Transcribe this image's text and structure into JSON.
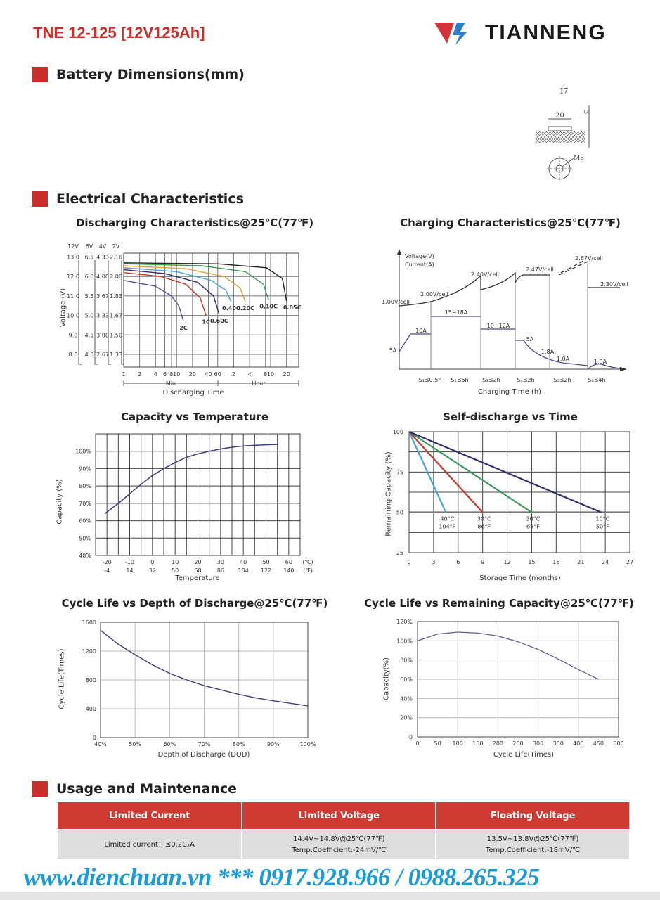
{
  "header": {
    "title": "TNE 12-125 [12V125Ah]",
    "brand": "TIANNENG"
  },
  "sections": {
    "dimensions": "Battery Dimensions(mm)",
    "electrical": "Electrical Characteristics",
    "usage": "Usage and Maintenance"
  },
  "terminal": {
    "name": "I7",
    "width": "20",
    "height": "3",
    "thread": "M8"
  },
  "colors": {
    "accent": "#c9302c",
    "footer": "#1a9ad9"
  },
  "chart_data": [
    {
      "type": "line",
      "title": "Discharging Characteristics@25℃(77℉)",
      "xlabel": "Discharging Time",
      "ylabel": "Voltage (V)",
      "x_scale": "log",
      "xunit_min": "Min",
      "xunit_hour": "Hour",
      "xticks": [
        {
          "v": 1,
          "l": "1"
        },
        {
          "v": 2,
          "l": "2"
        },
        {
          "v": 4,
          "l": "4"
        },
        {
          "v": 6,
          "l": "6"
        },
        {
          "v": 8,
          "l": "8"
        },
        {
          "v": 10,
          "l": "10"
        },
        {
          "v": 20,
          "l": "20"
        },
        {
          "v": 40,
          "l": "40"
        },
        {
          "v": 60,
          "l": "60"
        },
        {
          "v": 120,
          "l": "2"
        },
        {
          "v": 240,
          "l": "4"
        },
        {
          "v": 480,
          "l": "8"
        },
        {
          "v": 600,
          "l": "10"
        },
        {
          "v": 1200,
          "l": "20"
        }
      ],
      "ycolumns": [
        {
          "head": "12V",
          "labels": [
            "13.0",
            "12.0",
            "11.0",
            "10.0",
            "9.0",
            "8.0"
          ]
        },
        {
          "head": "6V",
          "labels": [
            "6.5",
            "6.0",
            "5.5",
            "5.0",
            "4.5",
            "4.0"
          ]
        },
        {
          "head": "4V",
          "labels": [
            "4.33",
            "4.00",
            "3.67",
            "3.33",
            "3.00",
            "2.67"
          ]
        },
        {
          "head": "2V",
          "labels": [
            "2.16",
            "2.00",
            "1.83",
            "1.67",
            "1.50",
            "1.33"
          ]
        }
      ],
      "yvalues": [
        13,
        12,
        11,
        10,
        9,
        8
      ],
      "ylim": [
        7.35,
        13.2
      ],
      "xlim": [
        1,
        2040
      ],
      "series": [
        {
          "name": "2C",
          "color": "#5b4d8c",
          "points": [
            [
              1,
              11.8
            ],
            [
              4,
              11.5
            ],
            [
              8,
              11.0
            ],
            [
              11,
              10.5
            ],
            [
              13.5,
              9.7
            ]
          ]
        },
        {
          "name": "1C",
          "color": "#c0392b",
          "points": [
            [
              1,
              12.2
            ],
            [
              5,
              12.0
            ],
            [
              15,
              11.6
            ],
            [
              28,
              10.9
            ],
            [
              36,
              10.0
            ]
          ]
        },
        {
          "name": "0.60C",
          "color": "#2e2e6e",
          "points": [
            [
              1,
              12.35
            ],
            [
              6,
              12.15
            ],
            [
              25,
              11.7
            ],
            [
              50,
              11.0
            ],
            [
              64,
              10.05
            ]
          ]
        },
        {
          "name": "0.40C",
          "color": "#4aa3d8",
          "points": [
            [
              1,
              12.45
            ],
            [
              10,
              12.25
            ],
            [
              45,
              11.8
            ],
            [
              85,
              11.3
            ],
            [
              108,
              10.7
            ]
          ]
        },
        {
          "name": "0.20C",
          "color": "#e0a040",
          "points": [
            [
              1,
              12.55
            ],
            [
              15,
              12.4
            ],
            [
              80,
              12.0
            ],
            [
              160,
              11.4
            ],
            [
              200,
              10.7
            ]
          ]
        },
        {
          "name": "0.10C",
          "color": "#3a9a5a",
          "points": [
            [
              1,
              12.65
            ],
            [
              30,
              12.55
            ],
            [
              200,
              12.25
            ],
            [
              440,
              11.6
            ],
            [
              550,
              10.8
            ]
          ]
        },
        {
          "name": "0.05C",
          "color": "#222222",
          "points": [
            [
              1,
              12.7
            ],
            [
              60,
              12.65
            ],
            [
              500,
              12.45
            ],
            [
              1000,
              11.9
            ],
            [
              1200,
              10.75
            ]
          ]
        }
      ]
    },
    {
      "type": "diagram",
      "title": "Charging Characteristics@25℃(77℉)",
      "xlabel": "Charging Time (h)",
      "ylabel1": "Voltage(V)",
      "ylabel2": "Current(A)",
      "voltage_labels": [
        "1.00V/cell",
        "2.00V/cell",
        "2.40V/cell",
        "2.47V/cell",
        "2.67V/cell",
        "2.30V/cell"
      ],
      "current_labels": [
        "5A",
        "10A",
        "15~18A",
        "10~12A",
        "5A",
        "1.8A",
        "1.0A",
        "1.0A"
      ],
      "stages": [
        "S₁≤0.5h",
        "S₂≤6h",
        "S₃≤2h",
        "S₄≤2h",
        "S₅≤2h",
        "S₆≤4h"
      ]
    },
    {
      "type": "line",
      "title": "Capacity vs Temperature",
      "xlabel": "Temperature",
      "ylabel": "Capacity (%)",
      "xlim": [
        -25,
        65
      ],
      "ylim": [
        40,
        110
      ],
      "xticks_c": [
        "-20",
        "-10",
        "0",
        "10",
        "20",
        "30",
        "40",
        "50",
        "60"
      ],
      "xticks_f": [
        "-4",
        "14",
        "32",
        "50",
        "68",
        "86",
        "104",
        "122",
        "140"
      ],
      "unit_c": "(℃)",
      "unit_f": "(℉)",
      "yticks": [
        {
          "v": 40,
          "l": "40%"
        },
        {
          "v": 50,
          "l": "50%"
        },
        {
          "v": 60,
          "l": "60%"
        },
        {
          "v": 70,
          "l": "70%"
        },
        {
          "v": 80,
          "l": "80%"
        },
        {
          "v": 90,
          "l": "90%"
        },
        {
          "v": 100,
          "l": "100%"
        }
      ],
      "series": [
        {
          "name": "capacity",
          "color": "#3d3d7a",
          "points": [
            [
              -21,
              64
            ],
            [
              -15,
              70
            ],
            [
              -10,
              75.5
            ],
            [
              -5,
              81
            ],
            [
              0,
              86
            ],
            [
              5,
              90
            ],
            [
              10,
              93.5
            ],
            [
              15,
              96.5
            ],
            [
              20,
              98.5
            ],
            [
              25,
              100
            ],
            [
              30,
              101.3
            ],
            [
              35,
              102.3
            ],
            [
              40,
              103
            ],
            [
              45,
              103.4
            ],
            [
              50,
              103.7
            ],
            [
              55,
              103.9
            ]
          ]
        }
      ]
    },
    {
      "type": "line",
      "title": "Self-discharge vs Time",
      "xlabel": "Storage Time (months)",
      "ylabel": "Remaining Capacity (%)",
      "xlim": [
        0,
        27
      ],
      "ylim": [
        25,
        100
      ],
      "xticks": [
        "0",
        "3",
        "6",
        "9",
        "12",
        "15",
        "18",
        "21",
        "24",
        "27"
      ],
      "yticks": [
        "25",
        "50",
        "75",
        "100"
      ],
      "series": [
        {
          "name": "40°C",
          "sub": "104°F",
          "color": "#4aa3d8",
          "points": [
            [
              0,
              100
            ],
            [
              4.5,
              50
            ]
          ]
        },
        {
          "name": "30°C",
          "sub": "86°F",
          "color": "#c0392b",
          "points": [
            [
              0,
              100
            ],
            [
              9,
              50
            ]
          ]
        },
        {
          "name": "20°C",
          "sub": "68°F",
          "color": "#3a9a5a",
          "points": [
            [
              0,
              100
            ],
            [
              15,
              50
            ]
          ]
        },
        {
          "name": "10°C",
          "sub": "50°F",
          "color": "#2e2e6e",
          "points": [
            [
              0,
              100
            ],
            [
              23.5,
              50
            ]
          ]
        }
      ]
    },
    {
      "type": "line",
      "title": "Cycle Life vs Depth of Discharge@25℃(77℉)",
      "xlabel": "Depth of Discharge (DOD)",
      "ylabel": "Cycle Life(Times)",
      "xlim": [
        40,
        100
      ],
      "ylim": [
        0,
        1600
      ],
      "xticks": [
        "40%",
        "50%",
        "60%",
        "70%",
        "80%",
        "90%",
        "100%"
      ],
      "yticks": [
        "0",
        "400",
        "800",
        "1200",
        "1600"
      ],
      "series": [
        {
          "name": "cycle-life",
          "color": "#3d3d7a",
          "points": [
            [
              40,
              1490
            ],
            [
              45,
              1300
            ],
            [
              50,
              1150
            ],
            [
              55,
              1010
            ],
            [
              60,
              890
            ],
            [
              65,
              800
            ],
            [
              70,
              720
            ],
            [
              75,
              660
            ],
            [
              80,
              600
            ],
            [
              85,
              550
            ],
            [
              90,
              510
            ],
            [
              95,
              475
            ],
            [
              100,
              440
            ]
          ]
        }
      ]
    },
    {
      "type": "line",
      "title": "Cycle Life vs Remaining Capacity@25℃(77℉)",
      "xlabel": "Cycle Life(Times)",
      "ylabel": "Capacity(%)",
      "xlim": [
        0,
        500
      ],
      "ylim": [
        0,
        120
      ],
      "xticks": [
        "0",
        "50",
        "100",
        "150",
        "200",
        "250",
        "300",
        "350",
        "400",
        "450",
        "500"
      ],
      "yticks": [
        "0",
        "20%",
        "40%",
        "60%",
        "80%",
        "100%",
        "120%"
      ],
      "series": [
        {
          "name": "capacity",
          "color": "#6a5a9a",
          "points": [
            [
              0,
              100
            ],
            [
              50,
              107
            ],
            [
              100,
              109
            ],
            [
              150,
              108
            ],
            [
              200,
              105
            ],
            [
              250,
              99
            ],
            [
              300,
              91
            ],
            [
              350,
              81
            ],
            [
              400,
              70
            ],
            [
              450,
              60
            ]
          ]
        }
      ]
    }
  ],
  "table": {
    "headers": [
      "Limited Current",
      "Limited Voltage",
      "Floating Voltage"
    ],
    "row": [
      "Limited current：≤0.2C₂A",
      "14.4V~14.8V@25℃(77℉)",
      "Temp.Coefficient:-24mV/℃",
      "13.5V~13.8V@25℃(77℉)",
      "Temp.Coefficient:-18mV/℃"
    ]
  },
  "footer": "www.dienchuan.vn *** 0917.928.966 / 0988.265.325"
}
